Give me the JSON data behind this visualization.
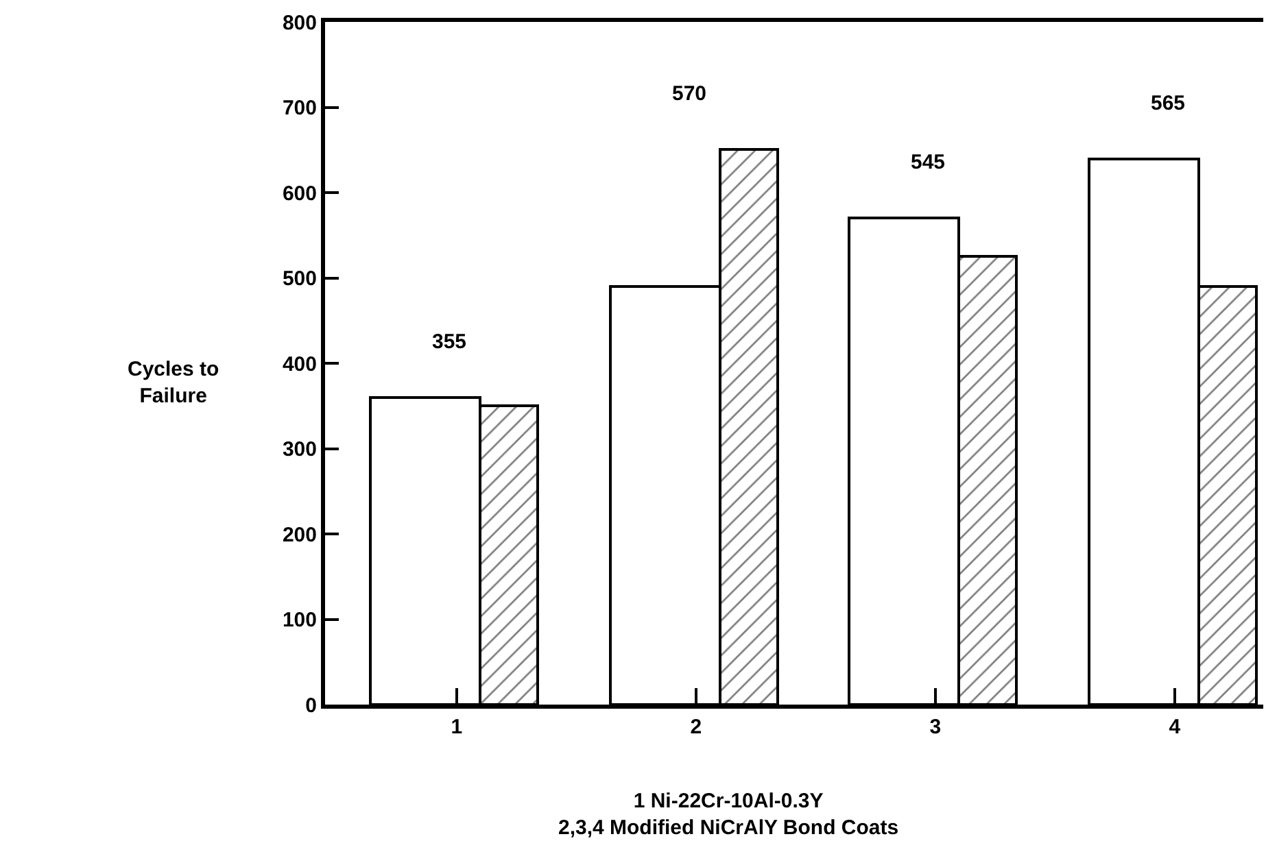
{
  "chart_data": {
    "type": "bar",
    "categories": [
      "1",
      "2",
      "3",
      "4"
    ],
    "series": [
      {
        "color": "#ffffff",
        "values": [
          360,
          490,
          570,
          640
        ]
      },
      {
        "color": "#000000",
        "values": [
          350,
          650,
          525,
          490
        ]
      }
    ],
    "ylabel": "Cycles to\nFailure",
    "xlabel": "1 Ni-22Cr-10Al-0.3Y\n2,3,4 Modified NiCrAlY Bond Coats",
    "annotations": [
      "355",
      "570",
      "545",
      "565"
    ],
    "ylim": [
      0,
      800
    ],
    "yticks": [
      0,
      100,
      200,
      300,
      400,
      500,
      600,
      700,
      800
    ]
  }
}
